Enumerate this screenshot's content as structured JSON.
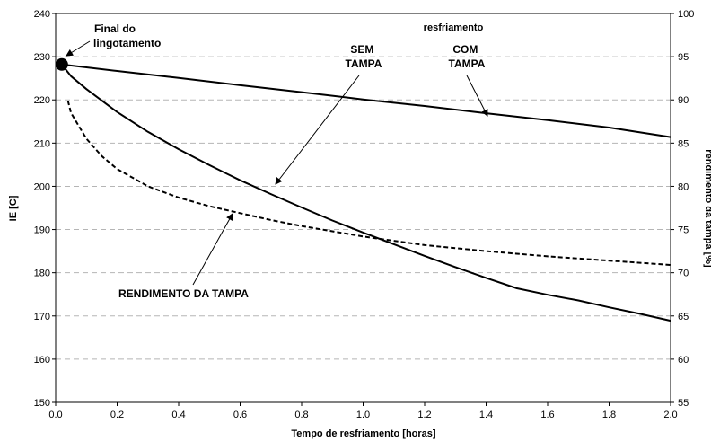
{
  "chart_data": {
    "type": "line",
    "title": "resfriamento",
    "xlabel": "Tempo de resfriamento [horas]",
    "ylabel_left": "IE [C]",
    "ylabel_right": "rendimento da tampa [%]",
    "xlim": [
      0.0,
      2.0
    ],
    "ylim_left": [
      150,
      240
    ],
    "ylim_right": [
      55,
      100
    ],
    "x_ticks": [
      "0.0",
      "0.2",
      "0.4",
      "0.6",
      "0.8",
      "1.0",
      "1.2",
      "1.4",
      "1.6",
      "1.8",
      "2.0"
    ],
    "y_ticks_left": [
      "150",
      "160",
      "170",
      "180",
      "190",
      "200",
      "210",
      "220",
      "230",
      "240"
    ],
    "y_ticks_right": [
      "55",
      "60",
      "65",
      "70",
      "75",
      "80",
      "85",
      "90",
      "95",
      "100"
    ],
    "grid": "horizontal dashed",
    "series": [
      {
        "name": "COM TAMPA",
        "axis": "left",
        "style": "solid",
        "x": [
          0.02,
          0.2,
          0.4,
          0.6,
          0.8,
          1.0,
          1.2,
          1.4,
          1.6,
          1.8,
          2.0
        ],
        "y": [
          228.2,
          226.7,
          225.1,
          223.4,
          221.8,
          220.1,
          218.6,
          216.9,
          215.3,
          213.6,
          211.4
        ]
      },
      {
        "name": "SEM TAMPA",
        "axis": "left",
        "style": "solid",
        "x": [
          0.02,
          0.05,
          0.1,
          0.2,
          0.3,
          0.4,
          0.5,
          0.6,
          0.7,
          0.8,
          0.9,
          1.0,
          1.1,
          1.2,
          1.3,
          1.4,
          1.5,
          1.6,
          1.7,
          1.8,
          1.9,
          2.0
        ],
        "y": [
          228.2,
          225.5,
          222.5,
          217.2,
          212.6,
          208.6,
          204.9,
          201.4,
          198.2,
          195.1,
          192.1,
          189.3,
          186.6,
          183.9,
          181.3,
          178.8,
          176.4,
          174.9,
          173.6,
          172.0,
          170.5,
          168.9
        ]
      },
      {
        "name": "RENDIMENTO DA TAMPA",
        "axis": "right",
        "style": "dashed",
        "x": [
          0.04,
          0.05,
          0.08,
          0.1,
          0.15,
          0.2,
          0.3,
          0.4,
          0.5,
          0.6,
          0.7,
          0.8,
          0.9,
          1.0,
          1.2,
          1.4,
          1.6,
          1.8,
          2.0
        ],
        "y": [
          89.9,
          88.5,
          86.7,
          85.5,
          83.5,
          82.0,
          80.0,
          78.7,
          77.7,
          76.9,
          76.1,
          75.4,
          74.8,
          74.2,
          73.2,
          72.5,
          71.9,
          71.4,
          70.9
        ]
      }
    ],
    "marker": {
      "label": "Final do lingotamento",
      "x": 0.02,
      "y": 228.2
    },
    "annotations": [
      {
        "lines": [
          "Final do",
          "lingotamento"
        ],
        "target": "marker"
      },
      {
        "lines": [
          "SEM",
          "TAMPA"
        ],
        "target": "SEM TAMPA"
      },
      {
        "lines": [
          "COM",
          "TAMPA"
        ],
        "target": "COM TAMPA"
      },
      {
        "lines": [
          "RENDIMENTO DA TAMPA"
        ],
        "target": "RENDIMENTO DA TAMPA"
      }
    ]
  }
}
